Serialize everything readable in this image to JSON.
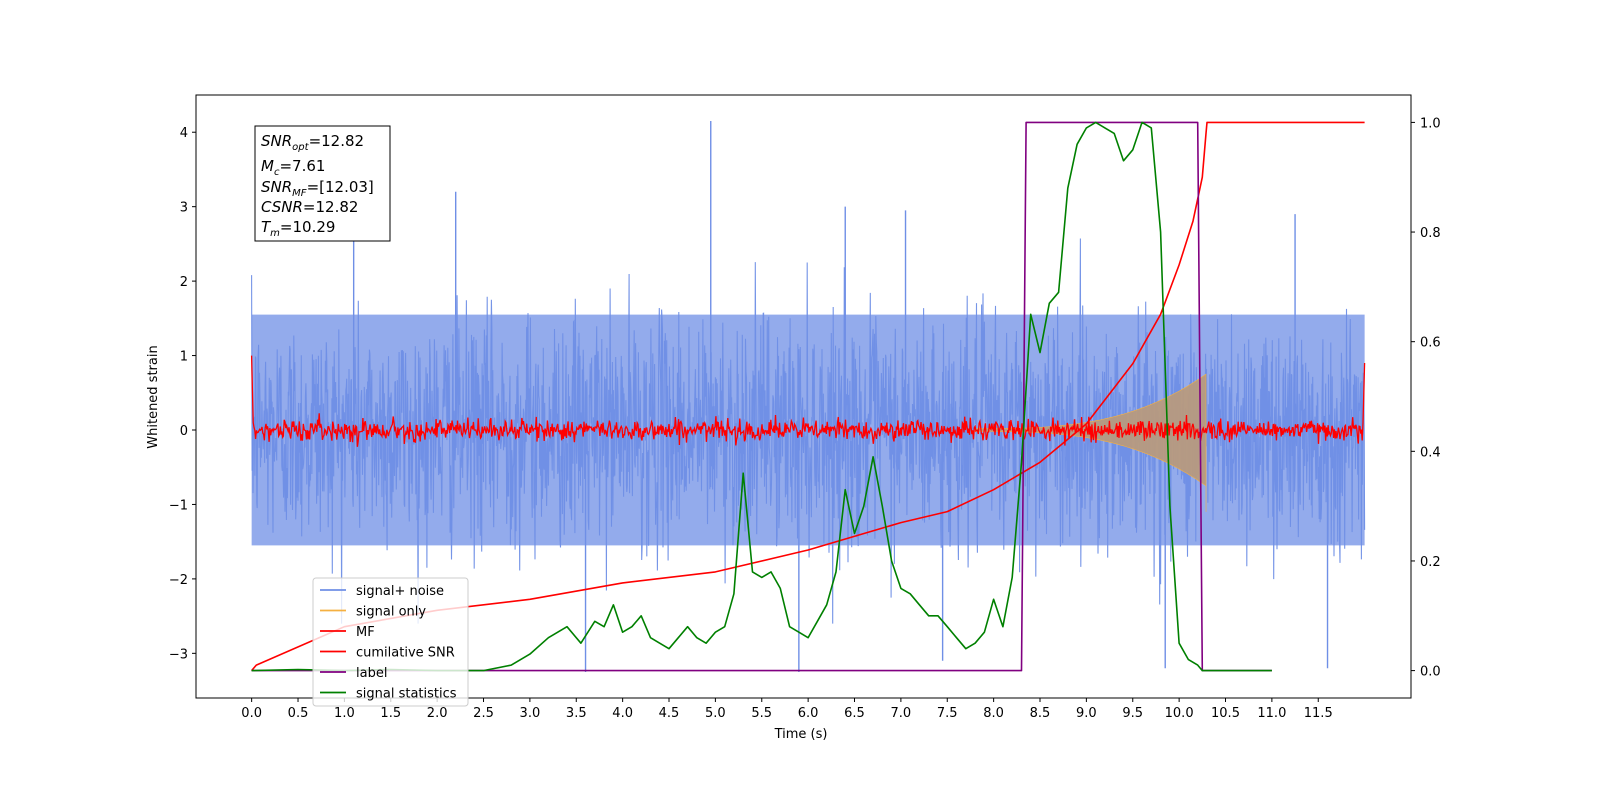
{
  "chart_data": {
    "type": "line",
    "xlabel": "Time (s)",
    "ylabel": "Whitened strain",
    "xlim": [
      -0.6,
      12.5
    ],
    "ylim": [
      -3.6,
      4.5
    ],
    "y2lim": [
      -0.05,
      1.05
    ],
    "xticks": [
      "0.0",
      "0.5",
      "1.0",
      "1.5",
      "2.0",
      "2.5",
      "3.0",
      "3.5",
      "4.0",
      "4.5",
      "5.0",
      "5.5",
      "6.0",
      "6.5",
      "7.0",
      "7.5",
      "8.0",
      "8.5",
      "9.0",
      "9.5",
      "10.0",
      "10.5",
      "11.0",
      "11.5"
    ],
    "yticks": [
      "−3",
      "−2",
      "−1",
      "0",
      "1",
      "2",
      "3",
      "4"
    ],
    "y2ticks": [
      "0.0",
      "0.2",
      "0.4",
      "0.6",
      "0.8",
      "1.0"
    ],
    "grid": false,
    "legend_position": "lower-left",
    "colors": {
      "signal_noise": "#6f8fe6",
      "signal_only": "#f5b041",
      "signal_overlap": "#b79a7e",
      "mf": "#ff0000",
      "csnr": "#ff0000",
      "label": "#800080",
      "stats": "#008000"
    },
    "annotation": {
      "snr_opt_base": "SNR",
      "snr_opt_sub": "opt",
      "snr_opt_value": "=12.82",
      "mc_base": "M",
      "mc_sub": "c",
      "mc_value": "=7.61",
      "snr_mf_base": "SNR",
      "snr_mf_sub": "MF",
      "snr_mf_value": "=[12.03]",
      "csnr_base": "CSNR",
      "csnr_value": "=12.82",
      "tm_base": "T",
      "tm_sub": "m",
      "tm_value": "=10.29"
    },
    "series": [
      {
        "name": "signal+ noise",
        "axis": "left",
        "description_range": [
          -2.2,
          2.2
        ],
        "peaks": [
          [
            1.1,
            3.0
          ],
          [
            2.2,
            3.2
          ],
          [
            4.95,
            4.15
          ],
          [
            5.9,
            -3.25
          ],
          [
            3.6,
            -3.25
          ],
          [
            7.45,
            -3.1
          ],
          [
            9.85,
            -3.2
          ],
          [
            11.6,
            -3.2
          ],
          [
            6.4,
            3.0
          ],
          [
            7.05,
            2.95
          ],
          [
            11.25,
            2.9
          ]
        ]
      },
      {
        "name": "signal only",
        "axis": "left",
        "x_start": 7.8,
        "x_merge": 10.29,
        "envelope_start": 0.02,
        "envelope_end": 0.75
      },
      {
        "name": "MF",
        "axis": "left",
        "noise_amplitude": 0.1,
        "x_start": 0.0,
        "x_end": 12.0
      },
      {
        "name": "cumilative SNR",
        "axis": "right",
        "x": [
          0.0,
          0.05,
          1.0,
          2.0,
          3.0,
          4.0,
          5.0,
          6.0,
          7.0,
          7.5,
          8.0,
          8.5,
          9.0,
          9.5,
          9.8,
          10.0,
          10.15,
          10.25,
          10.29,
          10.3,
          12.0
        ],
        "y": [
          0.0,
          0.01,
          0.08,
          0.11,
          0.13,
          0.16,
          0.18,
          0.22,
          0.27,
          0.29,
          0.33,
          0.38,
          0.45,
          0.56,
          0.65,
          0.74,
          0.82,
          0.9,
          0.98,
          1.0,
          1.0
        ]
      },
      {
        "name": "label",
        "axis": "right",
        "x": [
          0.0,
          8.3,
          8.35,
          10.2,
          10.25,
          11.0
        ],
        "y": [
          0.0,
          0.0,
          1.0,
          1.0,
          0.0,
          0.0
        ]
      },
      {
        "name": "signal statistics",
        "axis": "right",
        "x": [
          0.0,
          0.5,
          1.0,
          1.5,
          2.0,
          2.5,
          2.8,
          3.0,
          3.2,
          3.4,
          3.55,
          3.7,
          3.8,
          3.9,
          4.0,
          4.1,
          4.2,
          4.3,
          4.4,
          4.5,
          4.6,
          4.7,
          4.8,
          4.9,
          5.0,
          5.1,
          5.2,
          5.3,
          5.4,
          5.5,
          5.6,
          5.7,
          5.8,
          5.9,
          6.0,
          6.1,
          6.2,
          6.3,
          6.4,
          6.5,
          6.6,
          6.7,
          6.8,
          6.9,
          7.0,
          7.1,
          7.2,
          7.3,
          7.4,
          7.5,
          7.6,
          7.7,
          7.8,
          7.9,
          8.0,
          8.1,
          8.2,
          8.3,
          8.4,
          8.5,
          8.6,
          8.7,
          8.8,
          8.9,
          9.0,
          9.1,
          9.2,
          9.3,
          9.4,
          9.5,
          9.6,
          9.7,
          9.8,
          9.9,
          10.0,
          10.1,
          10.2,
          10.25,
          10.3,
          10.35,
          10.4,
          10.5,
          11.0
        ],
        "y": [
          0.0,
          0.002,
          0.0,
          0.002,
          0.0,
          0.0,
          0.01,
          0.03,
          0.06,
          0.08,
          0.05,
          0.09,
          0.08,
          0.12,
          0.07,
          0.08,
          0.1,
          0.06,
          0.05,
          0.04,
          0.06,
          0.08,
          0.06,
          0.05,
          0.07,
          0.08,
          0.14,
          0.36,
          0.18,
          0.17,
          0.18,
          0.15,
          0.08,
          0.07,
          0.06,
          0.09,
          0.12,
          0.18,
          0.33,
          0.25,
          0.3,
          0.39,
          0.3,
          0.2,
          0.15,
          0.14,
          0.12,
          0.1,
          0.1,
          0.08,
          0.06,
          0.04,
          0.05,
          0.07,
          0.13,
          0.08,
          0.17,
          0.38,
          0.65,
          0.58,
          0.67,
          0.69,
          0.88,
          0.96,
          0.99,
          1.0,
          0.99,
          0.98,
          0.93,
          0.95,
          1.0,
          0.99,
          0.8,
          0.3,
          0.05,
          0.02,
          0.01,
          0.0,
          0.0,
          0.0,
          0.0,
          0.0,
          0.0
        ]
      }
    ]
  }
}
